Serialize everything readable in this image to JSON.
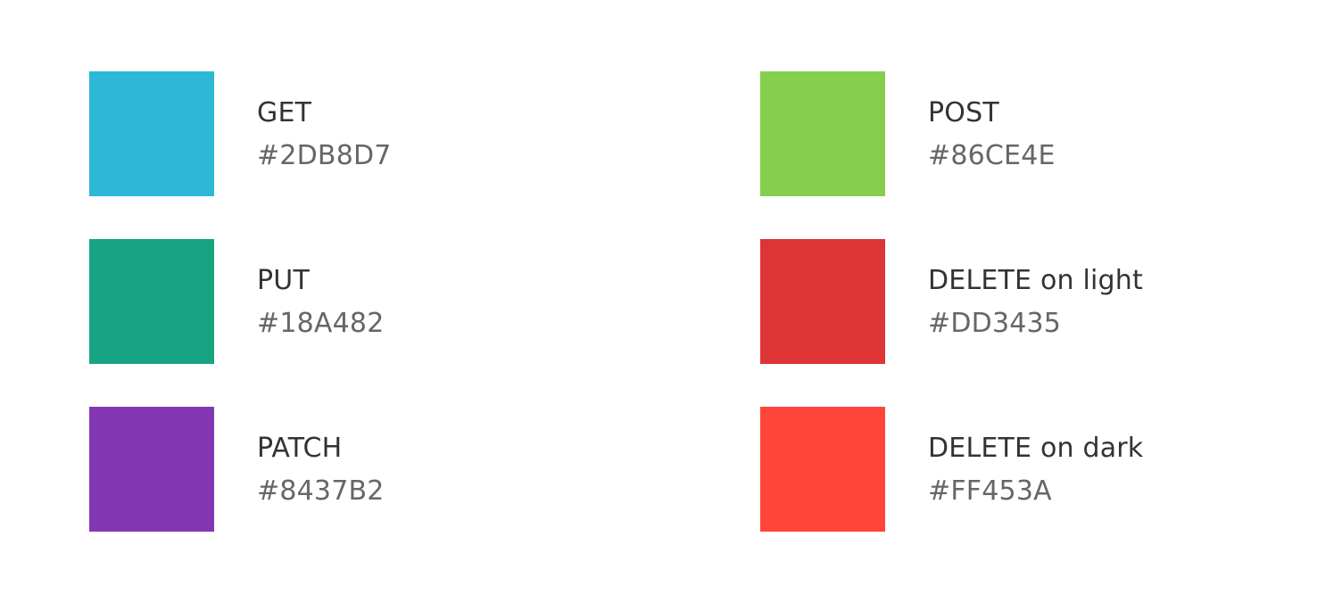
{
  "swatches": [
    {
      "name": "GET",
      "hex": "#2DB8D7",
      "color": "#2DB8D7"
    },
    {
      "name": "POST",
      "hex": "#86CE4E",
      "color": "#86CE4E"
    },
    {
      "name": "PUT",
      "hex": "#18A482",
      "color": "#18A482"
    },
    {
      "name": "DELETE on light",
      "hex": "#DD3435",
      "color": "#DD3435"
    },
    {
      "name": "PATCH",
      "hex": "#8437B2",
      "color": "#8437B2"
    },
    {
      "name": "DELETE on dark",
      "hex": "#FF453A",
      "color": "#FF453A"
    }
  ]
}
